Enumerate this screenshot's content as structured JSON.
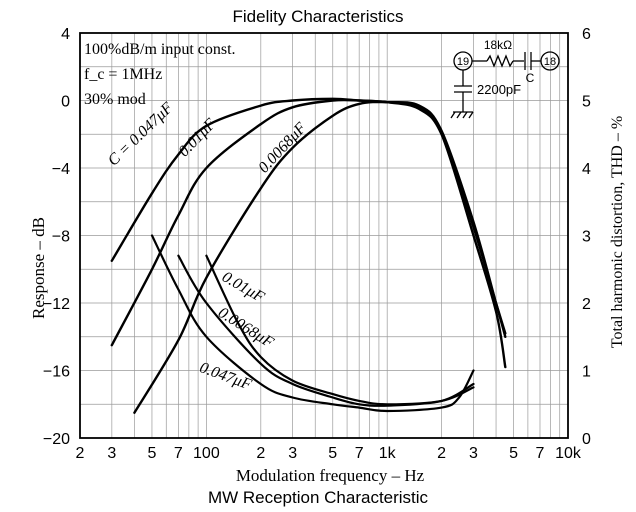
{
  "chart_data": {
    "type": "line",
    "title": "Fidelity Characteristics",
    "caption": "MW Reception Characteristic",
    "xlabel": "Modulation frequency  –  Hz",
    "ylabel_left": "Response  –  dB",
    "ylabel_right": "Total harmonic distortion, THD  –  %",
    "x_scale": "log",
    "xlim": [
      20,
      10000
    ],
    "ylim_left": [
      -20,
      4
    ],
    "ylim_right": [
      0,
      6
    ],
    "grid": true,
    "x_tick_values": [
      20,
      30,
      50,
      70,
      100,
      200,
      300,
      500,
      700,
      1000,
      2000,
      3000,
      5000,
      7000,
      10000
    ],
    "x_tick_labels": [
      "2",
      "3",
      "5",
      "7",
      "100",
      "2",
      "3",
      "5",
      "7",
      "1k",
      "2",
      "3",
      "5",
      "7",
      "10k"
    ],
    "y_left_ticks": [
      4,
      0,
      -4,
      -8,
      -12,
      -16,
      -20
    ],
    "y_left_tick_labels": [
      "4",
      "0",
      "−4",
      "−8",
      "−12",
      "−16",
      "−20"
    ],
    "y_right_ticks": [
      6,
      5,
      4,
      3,
      2,
      1,
      0
    ],
    "y_right_tick_labels": [
      "6",
      "5",
      "4",
      "3",
      "2",
      "1",
      "0"
    ],
    "conditions": [
      "100%dB/m  input const.",
      "f_c = 1MHz",
      "30% mod"
    ],
    "circuit": {
      "resistor": "18kΩ",
      "capacitor_label": "C",
      "capacitor_value": "2200pF",
      "pin_left": "19",
      "pin_right": "18"
    },
    "response_series": [
      {
        "name": "C = 0.047μF",
        "axis": "left",
        "points": [
          [
            30,
            -9.5
          ],
          [
            50,
            -5.5
          ],
          [
            70,
            -3.2
          ],
          [
            100,
            -1.5
          ],
          [
            200,
            -0.3
          ],
          [
            300,
            0
          ],
          [
            500,
            0.1
          ],
          [
            700,
            0
          ],
          [
            1000,
            -0.1
          ],
          [
            1500,
            -0.5
          ],
          [
            2000,
            -2
          ],
          [
            3000,
            -7.5
          ],
          [
            4000,
            -12
          ],
          [
            4500,
            -13.8
          ]
        ]
      },
      {
        "name": "0.01μF",
        "axis": "left",
        "points": [
          [
            30,
            -14.5
          ],
          [
            50,
            -10
          ],
          [
            70,
            -6.8
          ],
          [
            100,
            -4
          ],
          [
            200,
            -1.4
          ],
          [
            300,
            -0.4
          ],
          [
            500,
            0
          ],
          [
            700,
            0
          ],
          [
            1000,
            -0.1
          ],
          [
            1500,
            -0.4
          ],
          [
            2000,
            -2
          ],
          [
            3000,
            -8
          ],
          [
            4000,
            -12.5
          ],
          [
            4500,
            -15.8
          ]
        ]
      },
      {
        "name": "0.0068μF",
        "axis": "left",
        "points": [
          [
            40,
            -18.5
          ],
          [
            70,
            -14.2
          ],
          [
            100,
            -10.5
          ],
          [
            200,
            -5.2
          ],
          [
            300,
            -2.8
          ],
          [
            500,
            -0.9
          ],
          [
            700,
            -0.2
          ],
          [
            1000,
            -0.1
          ],
          [
            1500,
            -0.3
          ],
          [
            2000,
            -1.8
          ],
          [
            3000,
            -7.2
          ],
          [
            4000,
            -12
          ],
          [
            4500,
            -14
          ]
        ]
      }
    ],
    "thd_series": [
      {
        "name": "0.047μF",
        "axis": "right",
        "points": [
          [
            50,
            3
          ],
          [
            70,
            2.2
          ],
          [
            100,
            1.5
          ],
          [
            200,
            0.8
          ],
          [
            300,
            0.6
          ],
          [
            500,
            0.5
          ],
          [
            700,
            0.45
          ],
          [
            1000,
            0.4
          ],
          [
            2000,
            0.45
          ],
          [
            2500,
            0.6
          ],
          [
            3000,
            1
          ]
        ]
      },
      {
        "name": "0.0068μF",
        "axis": "right",
        "points": [
          [
            70,
            2.7
          ],
          [
            100,
            2
          ],
          [
            200,
            1.1
          ],
          [
            300,
            0.8
          ],
          [
            500,
            0.6
          ],
          [
            700,
            0.5
          ],
          [
            1000,
            0.48
          ],
          [
            2000,
            0.55
          ],
          [
            3000,
            0.8
          ]
        ]
      },
      {
        "name": "0.01μF",
        "axis": "right",
        "points": [
          [
            100,
            2.7
          ],
          [
            150,
            1.7
          ],
          [
            200,
            1.2
          ],
          [
            300,
            0.85
          ],
          [
            500,
            0.65
          ],
          [
            700,
            0.55
          ],
          [
            1000,
            0.5
          ],
          [
            2000,
            0.55
          ],
          [
            3000,
            0.75
          ]
        ]
      }
    ],
    "curve_labels": [
      {
        "text": "C = 0.047μF",
        "x": 45,
        "y": -2.2,
        "angle": -44
      },
      {
        "text": "0.01μF",
        "x": 93,
        "y": -2.4,
        "angle": -46
      },
      {
        "text": "0.0068μF",
        "x": 275,
        "y": -3.0,
        "angle": -47
      },
      {
        "text": "0.01μF",
        "x": 155,
        "y": -11.3,
        "angle": 30
      },
      {
        "text": "0.0068μF",
        "x": 160,
        "y": -13.7,
        "angle": 32
      },
      {
        "text": "0.047μF",
        "x": 125,
        "y": -16.6,
        "angle": 20
      }
    ]
  }
}
